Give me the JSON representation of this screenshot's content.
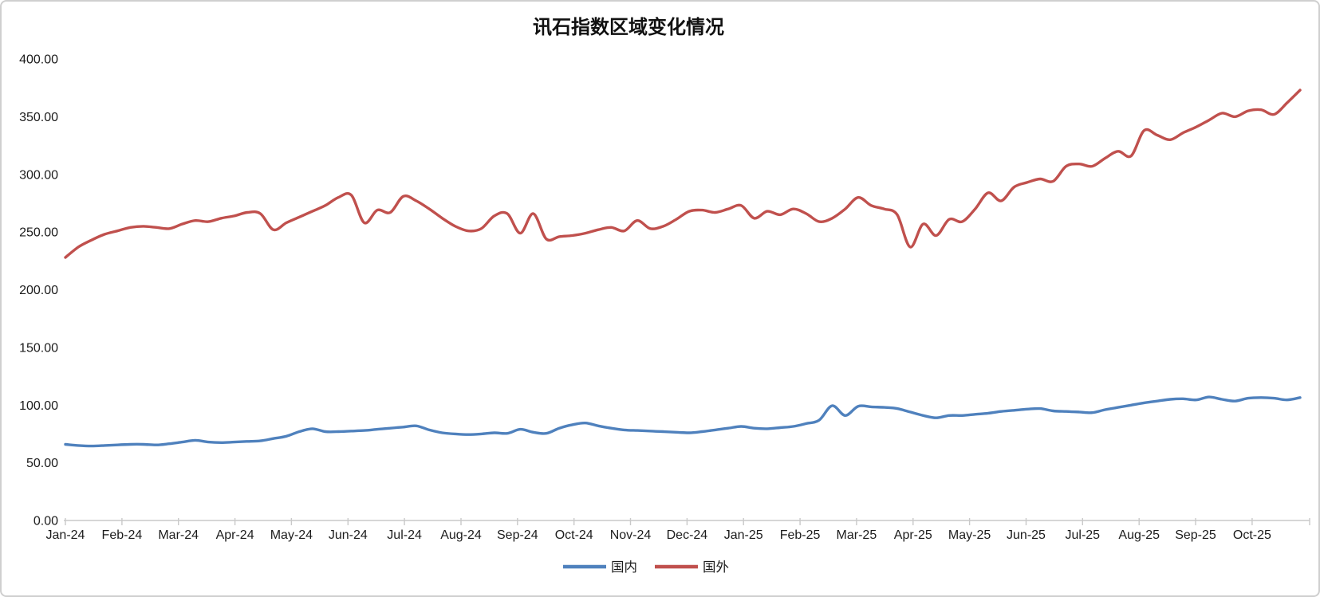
{
  "chart_data": {
    "type": "line",
    "title": "讯石指数区域变化情况",
    "xlabel": "",
    "ylabel": "",
    "ylim": [
      0,
      400
    ],
    "y_tick_labels": [
      "0.00",
      "50.00",
      "100.00",
      "150.00",
      "200.00",
      "250.00",
      "300.00",
      "350.00",
      "400.00"
    ],
    "x_tick_labels": [
      "Jan-24",
      "Feb-24",
      "Mar-24",
      "Apr-24",
      "May-24",
      "Jun-24",
      "Jul-24",
      "Aug-24",
      "Sep-24",
      "Oct-24",
      "Nov-24",
      "Dec-24",
      "Jan-25",
      "Feb-25",
      "Mar-25",
      "Apr-25",
      "May-25",
      "Jun-25",
      "Jul-25",
      "Aug-25",
      "Sep-25",
      "Oct-25"
    ],
    "x_frequency": "weekly",
    "points_per_month": 4.3481,
    "grid": false,
    "legend_position": "bottom",
    "axis_color": "#c9c9c9",
    "text_color": "#1c1c1c",
    "series": [
      {
        "key": "domestic",
        "name": "国内",
        "color": "#4F81BD",
        "values": [
          66,
          65,
          64.5,
          65,
          65.5,
          66,
          66,
          65.5,
          66.5,
          68,
          69.5,
          68,
          67.5,
          68,
          68.5,
          69,
          71,
          73,
          77,
          79.5,
          77,
          77,
          77.5,
          78,
          79,
          80,
          81,
          82,
          78.5,
          76,
          75,
          74.5,
          75,
          76,
          75.5,
          79,
          76.5,
          75.5,
          80,
          83,
          84.5,
          82,
          80,
          78.5,
          78,
          77.5,
          77,
          76.5,
          76,
          77,
          78.5,
          80,
          81.5,
          80,
          79.5,
          80.5,
          81.5,
          84,
          87,
          99.5,
          91,
          99,
          98.5,
          98,
          97,
          94,
          91,
          89,
          91,
          91,
          92,
          93,
          94.5,
          95.5,
          96.5,
          97,
          95,
          94.5,
          94,
          93.5,
          96,
          98,
          100,
          102,
          103.5,
          105,
          105.5,
          104.5,
          107,
          105,
          103.5,
          106,
          106.5,
          106,
          104.5,
          106.5
        ]
      },
      {
        "key": "foreign",
        "name": "国外",
        "color": "#C0504D",
        "values": [
          228,
          237,
          243,
          248,
          251,
          254,
          255,
          254,
          253,
          257,
          260,
          259,
          262,
          264,
          267,
          266,
          252,
          258,
          263,
          268,
          273,
          280,
          282,
          258,
          269,
          267,
          281,
          277,
          270,
          262,
          255,
          251,
          253,
          264,
          266,
          249,
          266,
          244,
          246,
          247,
          249,
          252,
          254,
          251,
          260,
          253,
          255,
          261,
          268,
          269,
          267,
          270,
          273,
          262,
          268,
          265,
          270,
          266,
          259,
          262,
          270,
          280,
          273,
          270,
          265,
          237,
          257,
          247,
          261,
          259,
          270,
          284,
          277,
          289,
          293,
          296,
          294,
          307,
          309,
          307,
          314,
          320,
          316,
          338,
          334,
          330,
          336,
          341,
          347,
          353,
          350,
          355,
          356,
          352,
          362,
          373
        ]
      }
    ]
  }
}
